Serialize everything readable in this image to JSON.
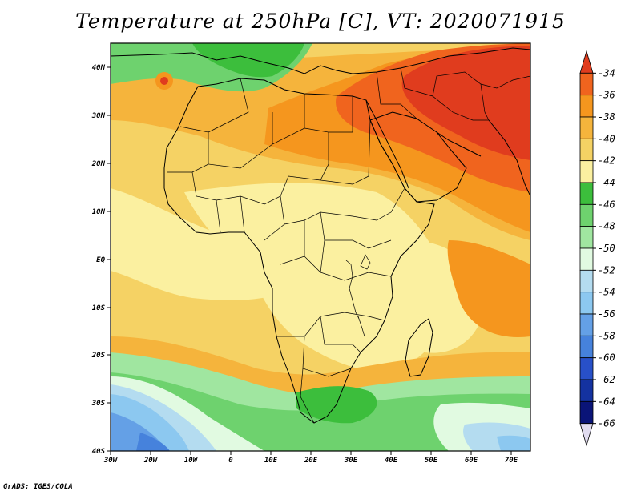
{
  "title": "Temperature at 250hPa [C], VT: 2020071915",
  "credit": "GrADS: IGES/COLA",
  "map": {
    "lat_labels": [
      "40N",
      "30N",
      "20N",
      "10N",
      "EQ",
      "10S",
      "20S",
      "30S",
      "40S"
    ],
    "lon_labels": [
      "30W",
      "20W",
      "10W",
      "0",
      "10E",
      "20E",
      "30E",
      "40E",
      "50E",
      "60E",
      "70E"
    ]
  },
  "colorbar": {
    "labels": [
      "-34",
      "-36",
      "-38",
      "-40",
      "-42",
      "-44",
      "-46",
      "-48",
      "-50",
      "-52",
      "-54",
      "-56",
      "-58",
      "-60",
      "-62",
      "-64",
      "-66"
    ],
    "colors": [
      "#e03c1e",
      "#f0641e",
      "#f5961e",
      "#f5b43c",
      "#f5d264",
      "#fbf0a0",
      "#3cbe3c",
      "#6ed26e",
      "#a0e6a0",
      "#e1fae1",
      "#b4dcf0",
      "#8cc8f0",
      "#64a0e6",
      "#4682dc",
      "#2850c8",
      "#1432a0",
      "#0a1478",
      "#e1dcf0"
    ]
  }
}
